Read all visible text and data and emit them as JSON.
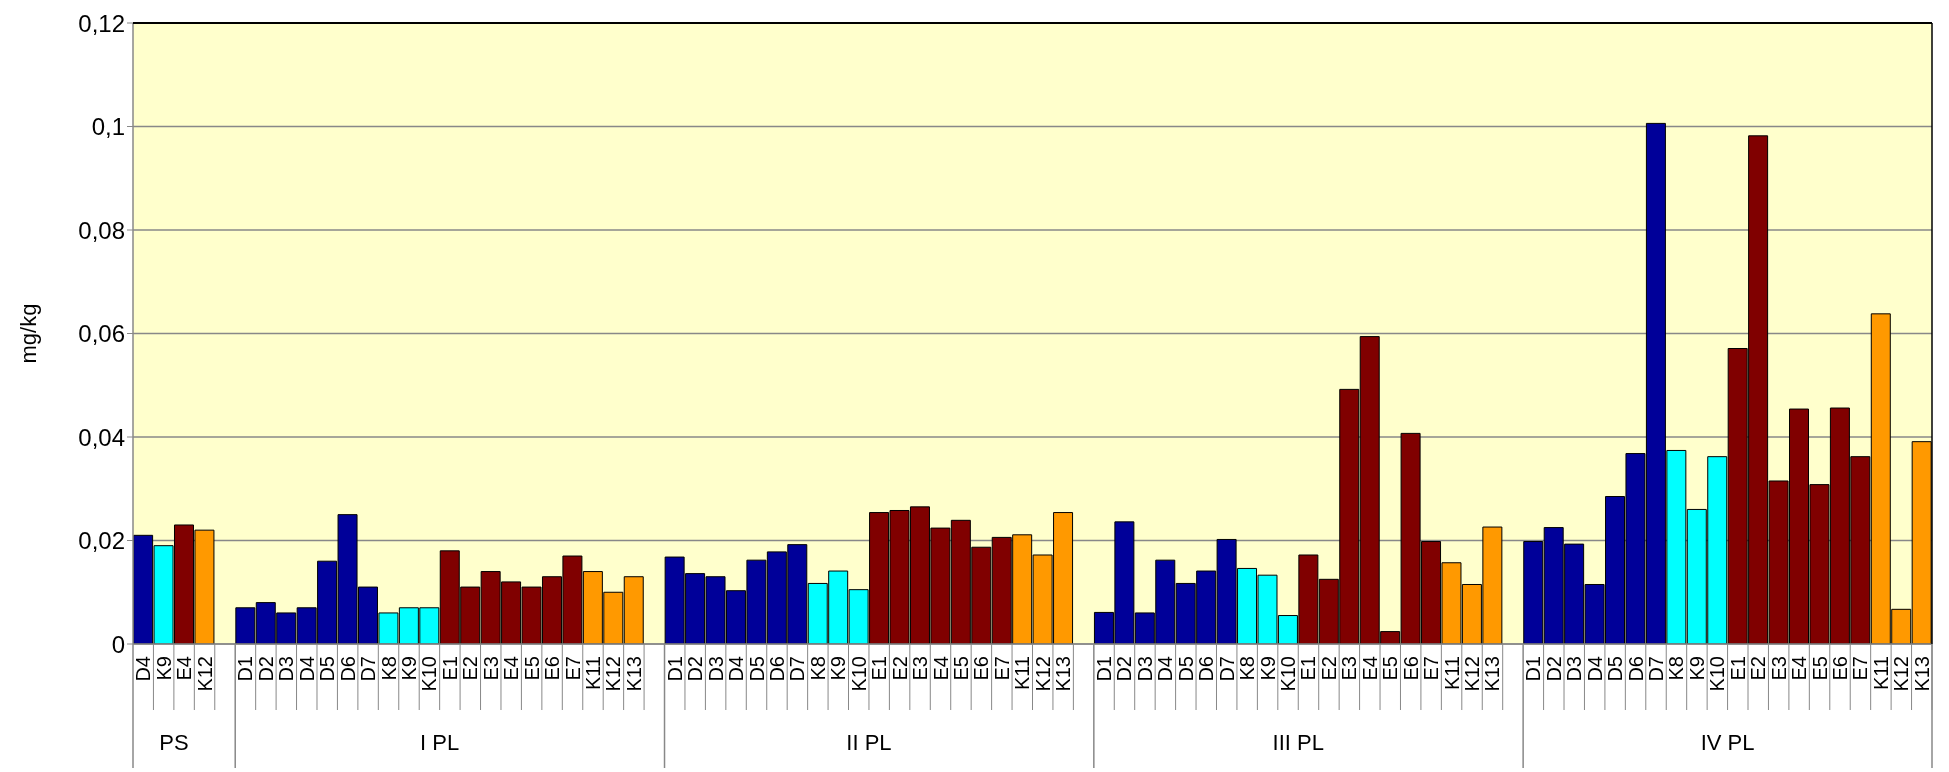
{
  "chart_data": {
    "type": "bar",
    "ylabel": "mg/kg",
    "categories": [
      "D4",
      "K9",
      "E4",
      "K12",
      null,
      "D1",
      "D2",
      "D3",
      "D4",
      "D5",
      "D6",
      "D7",
      "K8",
      "K9",
      "K10",
      "E1",
      "E2",
      "E3",
      "E4",
      "E5",
      "E6",
      "E7",
      "K11",
      "K12",
      "K13",
      null,
      "D1",
      "D2",
      "D3",
      "D4",
      "D5",
      "D6",
      "D7",
      "K8",
      "K9",
      "K10",
      "E1",
      "E2",
      "E3",
      "E4",
      "E5",
      "E6",
      "E7",
      "K11",
      "K12",
      "K13",
      null,
      "D1",
      "D2",
      "D3",
      "D4",
      "D5",
      "D6",
      "D7",
      "K8",
      "K9",
      "K10",
      "E1",
      "E2",
      "E3",
      "E4",
      "E5",
      "E6",
      "E7",
      "K11",
      "K12",
      "K13",
      null,
      "D1",
      "D2",
      "D3",
      "D4",
      "D5",
      "D6",
      "D7",
      "K8",
      "K9",
      "K10",
      "E1",
      "E2",
      "E3",
      "E4",
      "E5",
      "E6",
      "E7",
      "K11",
      "K12",
      "K13"
    ],
    "values": [
      0.021,
      0.019,
      0.023,
      0.022,
      null,
      0.007,
      0.008,
      0.006,
      0.007,
      0.016,
      0.025,
      0.011,
      0.006,
      0.007,
      0.007,
      0.018,
      0.011,
      0.014,
      0.012,
      0.011,
      0.013,
      0.017,
      0.014,
      0.01,
      0.013,
      null,
      0.0168,
      0.0136,
      0.013,
      0.0103,
      0.0162,
      0.0178,
      0.0192,
      0.0117,
      0.0141,
      0.0105,
      0.0254,
      0.0258,
      0.0265,
      0.0224,
      0.0239,
      0.0187,
      0.0206,
      0.0211,
      0.0172,
      0.0254,
      null,
      0.0061,
      0.0236,
      0.006,
      0.0162,
      0.0117,
      0.0141,
      0.0202,
      0.0146,
      0.0133,
      0.0055,
      0.0172,
      0.0125,
      0.0492,
      0.0594,
      0.0024,
      0.0407,
      0.0198,
      0.0157,
      0.0115,
      0.0226,
      null,
      0.0198,
      0.0225,
      0.0193,
      0.0115,
      0.0285,
      0.0368,
      0.1006,
      0.0374,
      0.026,
      0.0362,
      0.0571,
      0.0982,
      0.0315,
      0.0454,
      0.0308,
      0.0456,
      0.0362,
      0.0638,
      0.0067,
      0.0391
    ],
    "colors": [
      "#000099",
      "#00ffff",
      "#800000",
      "#ff9900",
      null,
      "#000099",
      "#000099",
      "#000099",
      "#000099",
      "#000099",
      "#000099",
      "#000099",
      "#00ffff",
      "#00ffff",
      "#00ffff",
      "#800000",
      "#800000",
      "#800000",
      "#800000",
      "#800000",
      "#800000",
      "#800000",
      "#ff9900",
      "#ff9900",
      "#ff9900",
      null,
      "#000099",
      "#000099",
      "#000099",
      "#000099",
      "#000099",
      "#000099",
      "#000099",
      "#00ffff",
      "#00ffff",
      "#00ffff",
      "#800000",
      "#800000",
      "#800000",
      "#800000",
      "#800000",
      "#800000",
      "#800000",
      "#ff9900",
      "#ff9900",
      "#ff9900",
      null,
      "#000099",
      "#000099",
      "#000099",
      "#000099",
      "#000099",
      "#000099",
      "#000099",
      "#00ffff",
      "#00ffff",
      "#00ffff",
      "#800000",
      "#800000",
      "#800000",
      "#800000",
      "#800000",
      "#800000",
      "#800000",
      "#ff9900",
      "#ff9900",
      "#ff9900",
      null,
      "#000099",
      "#000099",
      "#000099",
      "#000099",
      "#000099",
      "#000099",
      "#000099",
      "#00ffff",
      "#00ffff",
      "#00ffff",
      "#800000",
      "#800000",
      "#800000",
      "#800000",
      "#800000",
      "#800000",
      "#800000",
      "#ff9900",
      "#ff9900",
      "#ff9900"
    ],
    "annotations": [
      "PS",
      "I PL",
      "II PL",
      "III PL",
      "IV PL"
    ],
    "ylim": [
      0,
      0.12
    ],
    "yticks": [
      0,
      {
        "value": 0.02,
        "label": "0,02"
      },
      {
        "value": 0.04,
        "label": "0,04"
      },
      {
        "value": 0.06,
        "label": "0,06"
      },
      {
        "value": 0.08,
        "label": "0,08"
      },
      {
        "value": 0.1,
        "label": "0,1"
      },
      {
        "value": 0.12,
        "label": "0,12"
      }
    ],
    "grid": "y",
    "legend": false
  }
}
